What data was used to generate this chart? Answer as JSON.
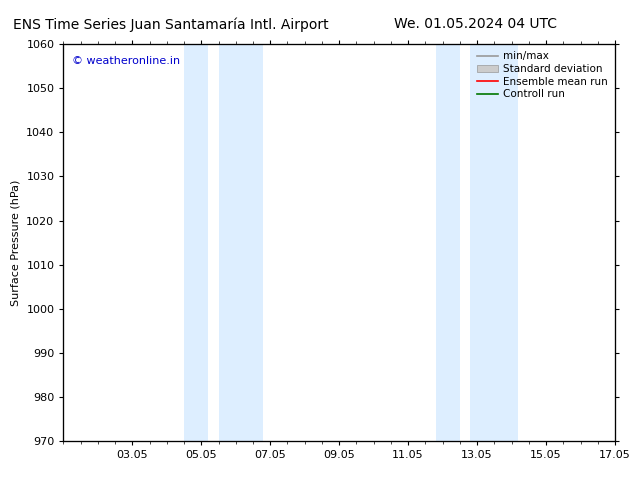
{
  "title_left": "ENS Time Series Juan Santamaría Intl. Airport",
  "title_right": "We. 01.05.2024 04 UTC",
  "ylabel": "Surface Pressure (hPa)",
  "ylim": [
    970,
    1060
  ],
  "yticks": [
    970,
    980,
    990,
    1000,
    1010,
    1020,
    1030,
    1040,
    1050,
    1060
  ],
  "xtick_labels": [
    "03.05",
    "05.05",
    "07.05",
    "09.05",
    "11.05",
    "13.05",
    "15.05",
    "17.05"
  ],
  "xtick_positions": [
    2,
    4,
    6,
    8,
    10,
    12,
    14,
    16
  ],
  "shaded_bands": [
    {
      "x_start": 3.5,
      "x_end": 4.2,
      "color": "#ddeeff"
    },
    {
      "x_start": 4.5,
      "x_end": 5.8,
      "color": "#ddeeff"
    },
    {
      "x_start": 10.8,
      "x_end": 11.5,
      "color": "#ddeeff"
    },
    {
      "x_start": 11.8,
      "x_end": 13.2,
      "color": "#ddeeff"
    }
  ],
  "watermark_text": "© weatheronline.in",
  "watermark_color": "#0000cc",
  "watermark_fontsize": 8,
  "legend_labels": [
    "min/max",
    "Standard deviation",
    "Ensemble mean run",
    "Controll run"
  ],
  "legend_line_color": "#999999",
  "legend_std_color": "#cccccc",
  "legend_ens_color": "#ff0000",
  "legend_ctrl_color": "#007700",
  "bg_color": "#ffffff",
  "plot_bg_color": "#ffffff",
  "border_color": "#000000",
  "tick_color": "#000000",
  "title_fontsize": 10,
  "axis_label_fontsize": 8,
  "tick_fontsize": 8,
  "legend_fontsize": 7.5
}
